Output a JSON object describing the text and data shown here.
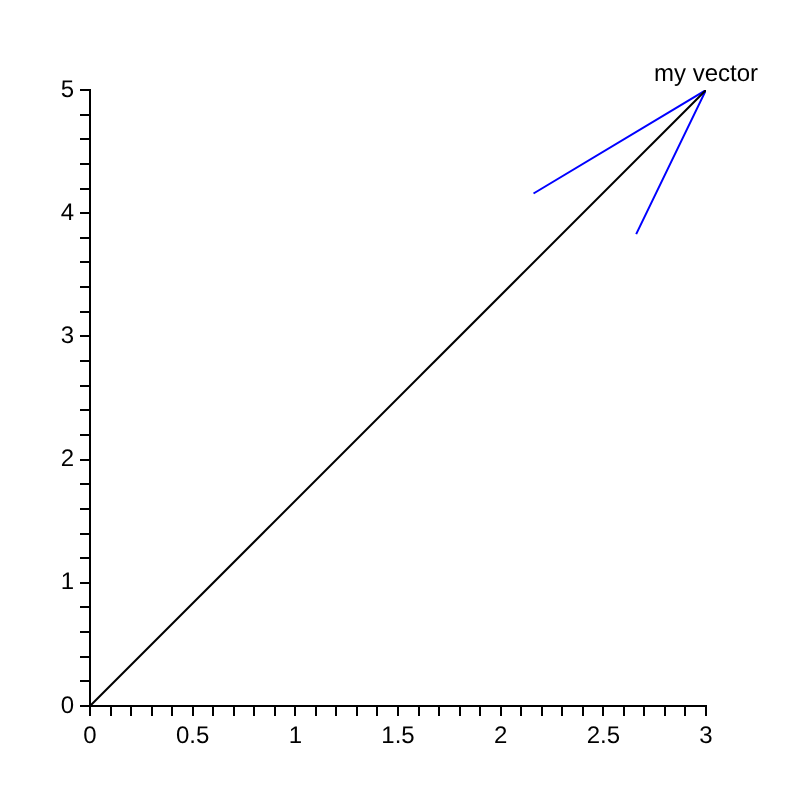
{
  "chart_data": {
    "type": "line",
    "marker": "none",
    "series": [
      {
        "color": "#000000",
        "x": [
          0,
          3
        ],
        "values": [
          0,
          5
        ]
      },
      {
        "color": "#0000ff",
        "x": [
          2.16,
          3,
          2.66
        ],
        "values": [
          4.16,
          5,
          3.83
        ]
      }
    ],
    "xlim": [
      0,
      3
    ],
    "ylim": [
      0,
      5
    ],
    "xticks": [
      0,
      {
        "value": 0.1,
        "label": null
      },
      {
        "value": 0.2,
        "label": null
      },
      {
        "value": 0.3,
        "label": null
      },
      {
        "value": 0.4,
        "label": null
      },
      0.5,
      {
        "value": 0.6,
        "label": null
      },
      {
        "value": 0.7,
        "label": null
      },
      {
        "value": 0.8,
        "label": null
      },
      {
        "value": 0.9,
        "label": null
      },
      1,
      {
        "value": 1.1,
        "label": null
      },
      {
        "value": 1.2,
        "label": null
      },
      {
        "value": 1.3,
        "label": null
      },
      {
        "value": 1.4,
        "label": null
      },
      1.5,
      {
        "value": 1.6,
        "label": null
      },
      {
        "value": 1.7,
        "label": null
      },
      {
        "value": 1.8,
        "label": null
      },
      {
        "value": 1.9,
        "label": null
      },
      2,
      {
        "value": 2.1,
        "label": null
      },
      {
        "value": 2.2,
        "label": null
      },
      {
        "value": 2.3,
        "label": null
      },
      {
        "value": 2.4,
        "label": null
      },
      2.5,
      {
        "value": 2.6,
        "label": null
      },
      {
        "value": 2.7,
        "label": null
      },
      {
        "value": 2.8,
        "label": null
      },
      {
        "value": 2.9,
        "label": null
      },
      3
    ],
    "yticks": [
      0,
      {
        "value": 0.2,
        "label": null
      },
      {
        "value": 0.4,
        "label": null
      },
      {
        "value": 0.6,
        "label": null
      },
      {
        "value": 0.8,
        "label": null
      },
      1,
      {
        "value": 1.2,
        "label": null
      },
      {
        "value": 1.4,
        "label": null
      },
      {
        "value": 1.6,
        "label": null
      },
      {
        "value": 1.8,
        "label": null
      },
      2,
      {
        "value": 2.2,
        "label": null
      },
      {
        "value": 2.4,
        "label": null
      },
      {
        "value": 2.6,
        "label": null
      },
      {
        "value": 2.8,
        "label": null
      },
      3,
      {
        "value": 3.2,
        "label": null
      },
      {
        "value": 3.4,
        "label": null
      },
      {
        "value": 3.6,
        "label": null
      },
      {
        "value": 3.8,
        "label": null
      },
      4,
      {
        "value": 4.2,
        "label": null
      },
      {
        "value": 4.4,
        "label": null
      },
      {
        "value": 4.6,
        "label": null
      },
      {
        "value": 4.8,
        "label": null
      },
      5
    ],
    "annotations": [
      {
        "text": "my vector",
        "x": 3,
        "y": 5
      }
    ]
  }
}
